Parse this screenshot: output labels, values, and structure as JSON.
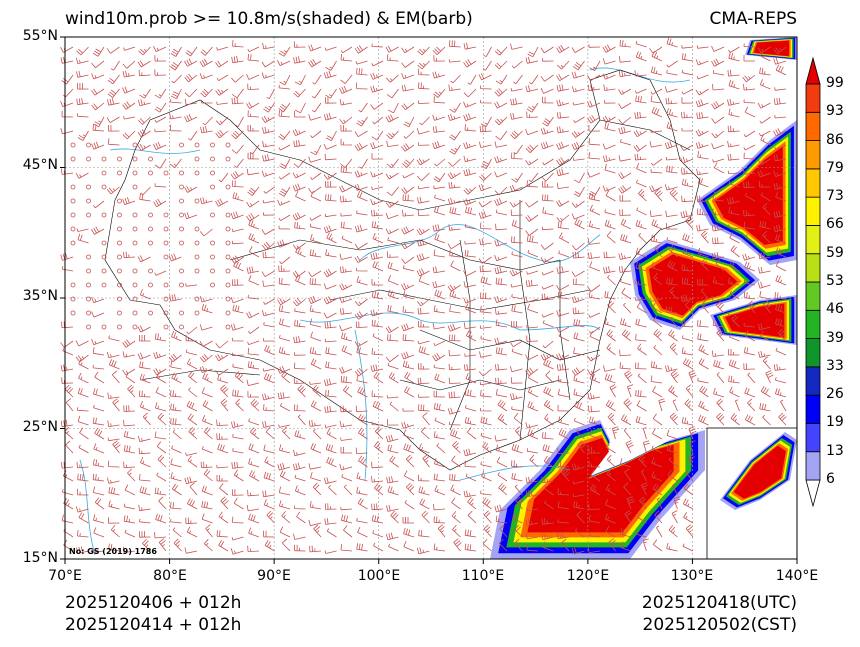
{
  "header": {
    "title_left": "wind10m.prob >= 10.8m/s(shaded) & EM(barb)",
    "title_right": "CMA-REPS"
  },
  "map": {
    "lat_ticks": [
      "55°N",
      "45°N",
      "35°N",
      "25°N",
      "15°N"
    ],
    "lon_ticks": [
      "70°E",
      "80°E",
      "90°E",
      "100°E",
      "110°E",
      "120°E",
      "130°E",
      "140°E"
    ],
    "map_approval": "No: GS (2019) 1786",
    "barb_color": "#c85050",
    "river_color": "#3aa8e0",
    "border_color": "#000000"
  },
  "colorbar": {
    "levels": [
      "6",
      "13",
      "19",
      "26",
      "33",
      "39",
      "46",
      "53",
      "59",
      "66",
      "73",
      "79",
      "86",
      "93",
      "99"
    ],
    "colors": [
      "#a4a4f4",
      "#4444ff",
      "#0000f8",
      "#1428c0",
      "#10942c",
      "#22b422",
      "#64c822",
      "#b8e014",
      "#e2f014",
      "#fff200",
      "#ffc800",
      "#ff9a00",
      "#ff6a00",
      "#f23c10"
    ],
    "over_color": "#e40000",
    "under_color": "#ffffff"
  },
  "footer": {
    "left_line1": "2025120406  +  012h",
    "left_line2": "2025120414  +  012h",
    "right_line1": "2025120418(UTC)",
    "right_line2": "2025120502(CST)"
  }
}
